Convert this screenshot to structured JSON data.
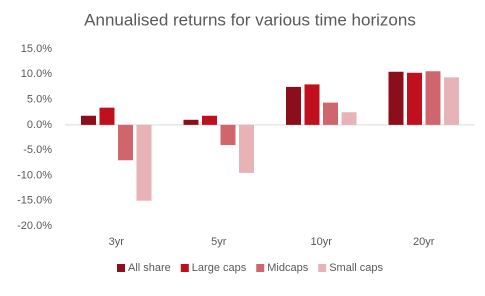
{
  "chart_data": {
    "type": "bar",
    "title": "Annualised returns for various time horizons",
    "categories": [
      "3yr",
      "5yr",
      "10yr",
      "20yr"
    ],
    "series": [
      {
        "name": "All share",
        "color": "#8b0e1a",
        "values": [
          1.8,
          1.0,
          7.5,
          10.5
        ]
      },
      {
        "name": "Large caps",
        "color": "#c0101e",
        "values": [
          3.4,
          1.8,
          8.0,
          10.3
        ]
      },
      {
        "name": "Midcaps",
        "color": "#d0666d",
        "values": [
          -7.0,
          -4.0,
          4.4,
          10.6
        ]
      },
      {
        "name": "Small caps",
        "color": "#e8b3b6",
        "values": [
          -15.0,
          -9.5,
          2.5,
          9.4
        ]
      }
    ],
    "ylim": [
      -20,
      15
    ],
    "yticks": [
      {
        "value": -20,
        "label": "-20.0%"
      },
      {
        "value": -15,
        "label": "-15.0%"
      },
      {
        "value": -10,
        "label": "-10.0%"
      },
      {
        "value": -5,
        "label": "-5.0%"
      },
      {
        "value": 0,
        "label": "0.0%"
      },
      {
        "value": 5,
        "label": "5.0%"
      },
      {
        "value": 10,
        "label": "10.0%"
      },
      {
        "value": 15,
        "label": "15.0%"
      }
    ],
    "grid": false,
    "legend": "bottom"
  }
}
